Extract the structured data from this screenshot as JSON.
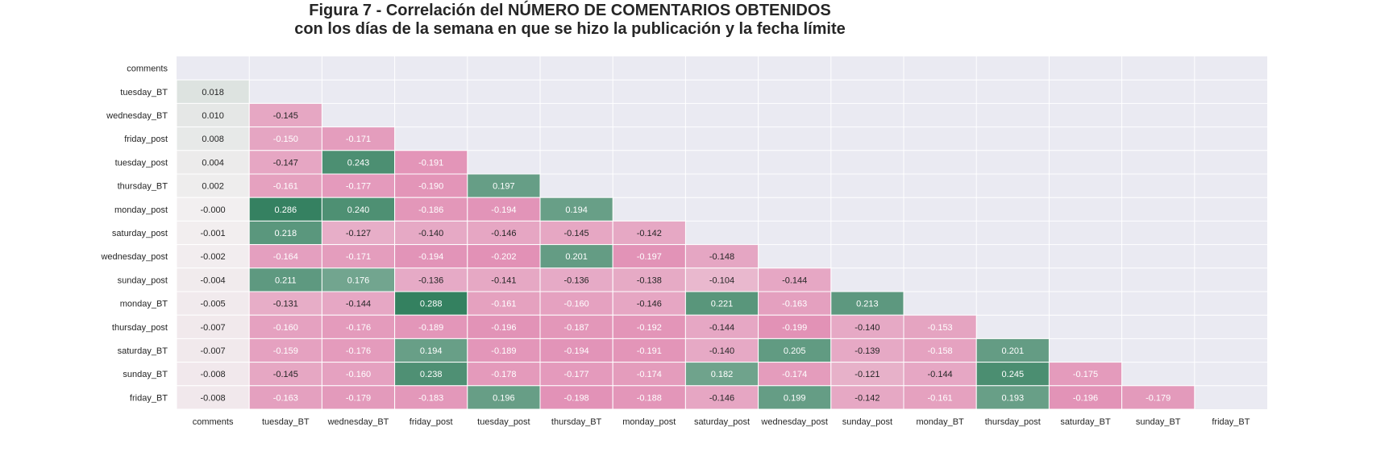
{
  "chart_data": {
    "type": "heatmap",
    "title": "Figura 7 - Correlación del NÚMERO DE COMENTARIOS OBTENIDOS",
    "subtitle": "con los días de la semana en que se hizo la publicación y la fecha límite",
    "row_labels": [
      "comments",
      "tuesday_BT",
      "wednesday_BT",
      "friday_post",
      "tuesday_post",
      "thursday_BT",
      "monday_post",
      "saturday_post",
      "wednesday_post",
      "sunday_post",
      "monday_BT",
      "thursday_post",
      "saturday_BT",
      "sunday_BT",
      "friday_BT"
    ],
    "col_labels": [
      "comments",
      "tuesday_BT",
      "wednesday_BT",
      "friday_post",
      "tuesday_post",
      "thursday_BT",
      "monday_post",
      "saturday_post",
      "wednesday_post",
      "sunday_post",
      "monday_BT",
      "thursday_post",
      "saturday_BT",
      "sunday_BT",
      "friday_BT"
    ],
    "mask": "upper triangle including diagonal",
    "value_format": "3 decimals",
    "values": [
      [],
      [
        "0.018"
      ],
      [
        "0.010",
        "-0.145"
      ],
      [
        "0.008",
        "-0.150",
        "-0.171"
      ],
      [
        "0.004",
        "-0.147",
        "0.243",
        "-0.191"
      ],
      [
        "0.002",
        "-0.161",
        "-0.177",
        "-0.190",
        "0.197"
      ],
      [
        "-0.000",
        "0.286",
        "0.240",
        "-0.186",
        "-0.194",
        "0.194"
      ],
      [
        "-0.001",
        "0.218",
        "-0.127",
        "-0.140",
        "-0.146",
        "-0.145",
        "-0.142"
      ],
      [
        "-0.002",
        "-0.164",
        "-0.171",
        "-0.194",
        "-0.202",
        "0.201",
        "-0.197",
        "-0.148"
      ],
      [
        "-0.004",
        "0.211",
        "0.176",
        "-0.136",
        "-0.141",
        "-0.136",
        "-0.138",
        "-0.104",
        "-0.144"
      ],
      [
        "-0.005",
        "-0.131",
        "-0.144",
        "0.288",
        "-0.161",
        "-0.160",
        "-0.146",
        "0.221",
        "-0.163",
        "0.213"
      ],
      [
        "-0.007",
        "-0.160",
        "-0.176",
        "-0.189",
        "-0.196",
        "-0.187",
        "-0.192",
        "-0.144",
        "-0.199",
        "-0.140",
        "-0.153"
      ],
      [
        "-0.007",
        "-0.159",
        "-0.176",
        "0.194",
        "-0.189",
        "-0.194",
        "-0.191",
        "-0.140",
        "0.205",
        "-0.139",
        "-0.158",
        "0.201"
      ],
      [
        "-0.008",
        "-0.145",
        "-0.160",
        "0.238",
        "-0.178",
        "-0.177",
        "-0.174",
        "0.182",
        "-0.174",
        "-0.121",
        "-0.144",
        "0.245",
        "-0.175"
      ],
      [
        "-0.008",
        "-0.163",
        "-0.179",
        "-0.183",
        "0.196",
        "-0.198",
        "-0.188",
        "-0.146",
        "0.199",
        "-0.142",
        "-0.161",
        "0.193",
        "-0.196",
        "-0.179"
      ]
    ],
    "colors": {
      "background": "#eaeaf2",
      "positive": "#2e7d5b",
      "negative": "#dc6ea0",
      "neutral": "#f2eff0",
      "text_dark": "#262626",
      "text_light": "#ffffff",
      "grid": "#ffffff"
    },
    "color_scale_abs_max": 0.3,
    "grid": true,
    "colorbar": false
  }
}
